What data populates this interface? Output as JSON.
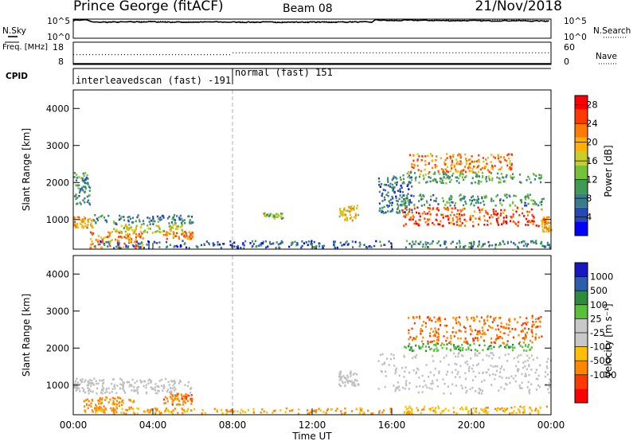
{
  "header": {
    "station": "Prince George (fitACF)",
    "beam": "Beam 08",
    "date": "21/Nov/2018"
  },
  "colors": {
    "power_scale": [
      "#0000ff",
      "#2848b8",
      "#3a7d8a",
      "#3f9a55",
      "#76c13a",
      "#c7cf28",
      "#ffb000",
      "#ff7a00",
      "#ff3a00",
      "#ff0000"
    ],
    "velocity_scale": [
      "#ff0000",
      "#ff3a00",
      "#ff8800",
      "#ffc000",
      "#c8c8c8",
      "#c8c8c8",
      "#58c13a",
      "#2f8a3f",
      "#2d5fa8",
      "#1818c0"
    ],
    "ground_scatter": "#c0c0c0",
    "dash_line": "#aaaaaa"
  },
  "chart_data": [
    {
      "type": "line",
      "name": "noise-panel",
      "left_label": "N.Sky",
      "right_label": "N.Search",
      "left_ticks": [
        "10^5",
        "10^0"
      ],
      "right_ticks": [
        "10^5",
        "10^0"
      ],
      "ylim": [
        0,
        5
      ],
      "series": [
        {
          "name": "N.Sky",
          "x_hours": [
            0,
            0.2,
            0.4,
            0.6,
            0.8,
            1.0,
            2,
            3,
            4,
            5,
            6,
            7,
            8,
            9,
            10,
            11,
            12,
            13,
            14,
            15,
            15.2,
            15.5,
            16,
            17,
            18,
            19,
            20,
            21,
            22,
            23,
            24
          ],
          "values": [
            4.6,
            4.8,
            4.7,
            4.9,
            4.5,
            4.2,
            4.2,
            4.25,
            4.3,
            4.2,
            4.2,
            4.25,
            4.2,
            4.2,
            4.2,
            4.2,
            4.2,
            4.2,
            4.25,
            4.2,
            4.8,
            4.7,
            4.6,
            4.7,
            4.65,
            4.6,
            4.6,
            4.55,
            4.6,
            4.5,
            4.5
          ]
        },
        {
          "name": "N.Search",
          "x_hours": [
            0,
            0.2,
            0.4,
            0.6,
            0.8,
            1.0,
            2,
            3,
            4,
            5,
            6,
            7,
            8,
            9,
            10,
            11,
            12,
            13,
            14,
            15,
            15.2,
            15.5,
            16,
            17,
            18,
            19,
            20,
            21,
            22,
            23,
            24
          ],
          "values": [
            4.9,
            5.0,
            4.8,
            4.9,
            4.7,
            4.3,
            4.3,
            4.35,
            4.4,
            4.3,
            4.3,
            4.3,
            4.3,
            4.3,
            4.3,
            4.3,
            4.3,
            4.3,
            4.3,
            4.3,
            5.0,
            4.9,
            4.8,
            4.9,
            4.8,
            4.8,
            4.7,
            4.7,
            4.8,
            4.7,
            4.6
          ]
        }
      ]
    },
    {
      "type": "line",
      "name": "freq-panel",
      "left_label": "Freq. [MHz]",
      "right_label": "Nave",
      "left_ticks": [
        "18",
        "8"
      ],
      "right_ticks": [
        "60",
        "0"
      ],
      "series": [
        {
          "name": "Freq.",
          "x_hours": [
            0,
            24
          ],
          "values": [
            10.5,
            10.5
          ]
        },
        {
          "name": "Nave",
          "x_hours": [
            0,
            8,
            8.01,
            24
          ],
          "values": [
            35,
            35,
            40,
            40
          ]
        }
      ]
    },
    {
      "type": "table",
      "name": "cpid-panel",
      "label": "CPID",
      "segments": [
        {
          "text": "interleavedscan (fast) -191",
          "start_hour": 0,
          "end_hour": 8
        },
        {
          "text": "normal (fast) 151",
          "start_hour": 8,
          "end_hour": 24
        }
      ]
    },
    {
      "type": "heatmap",
      "name": "power-panel",
      "ylabel": "Slant Range [km]",
      "xlim": [
        0,
        24
      ],
      "ylim": [
        200,
        4500
      ],
      "yticks": [
        "1000",
        "2000",
        "3000",
        "4000"
      ],
      "colorbar_label": "Power [dB]",
      "colorbar_ticks": [
        "4",
        "8",
        "12",
        "16",
        "20",
        "24",
        "28"
      ],
      "colorbar_range": [
        0,
        30
      ],
      "regions": [
        {
          "t0": 0.0,
          "t1": 0.8,
          "r0": 1400,
          "r1": 2300,
          "level": 10
        },
        {
          "t0": 0.0,
          "t1": 1.0,
          "r0": 800,
          "r1": 1100,
          "level": 20
        },
        {
          "t0": 0.8,
          "t1": 3.5,
          "r0": 250,
          "r1": 700,
          "level": 22
        },
        {
          "t0": 1.0,
          "t1": 6.0,
          "r0": 900,
          "r1": 1150,
          "level": 8
        },
        {
          "t0": 2.0,
          "t1": 5.5,
          "r0": 650,
          "r1": 900,
          "level": 16
        },
        {
          "t0": 4.5,
          "t1": 6.0,
          "r0": 500,
          "r1": 700,
          "level": 22
        },
        {
          "t0": 1.0,
          "t1": 16.0,
          "r0": 250,
          "r1": 450,
          "level": 6
        },
        {
          "t0": 9.5,
          "t1": 10.5,
          "r0": 1050,
          "r1": 1200,
          "level": 14
        },
        {
          "t0": 13.3,
          "t1": 14.3,
          "r0": 1000,
          "r1": 1400,
          "level": 18
        },
        {
          "t0": 15.3,
          "t1": 17.0,
          "r0": 1200,
          "r1": 2200,
          "level": 7
        },
        {
          "t0": 16.0,
          "t1": 23.6,
          "r0": 1400,
          "r1": 1700,
          "level": 10
        },
        {
          "t0": 16.5,
          "t1": 23.5,
          "r0": 850,
          "r1": 1350,
          "level": 25
        },
        {
          "t0": 16.8,
          "t1": 22.0,
          "r0": 2300,
          "r1": 2800,
          "level": 22
        },
        {
          "t0": 16.5,
          "t1": 23.5,
          "r0": 2000,
          "r1": 2300,
          "level": 11
        },
        {
          "t0": 16.5,
          "t1": 24,
          "r0": 250,
          "r1": 450,
          "level": 8
        },
        {
          "t0": 23.5,
          "t1": 24,
          "r0": 700,
          "r1": 1100,
          "level": 20
        }
      ]
    },
    {
      "type": "heatmap",
      "name": "velocity-panel",
      "ylabel": "Slant Range [km]",
      "xlabel": "Time UT",
      "xlim": [
        0,
        24
      ],
      "ylim": [
        200,
        4500
      ],
      "yticks": [
        "1000",
        "2000",
        "3000",
        "4000"
      ],
      "xticks": [
        "00:00",
        "04:00",
        "08:00",
        "12:00",
        "16:00",
        "20:00",
        "00:00"
      ],
      "colorbar_label": "Velocity [m s⁻¹]",
      "colorbar_ticks": [
        "1000",
        "500",
        "100",
        "25",
        "-25",
        "-100",
        "-500",
        "-1000"
      ],
      "regions": [
        {
          "t0": 0.0,
          "t1": 1.0,
          "r0": 800,
          "r1": 1200,
          "v": 0
        },
        {
          "t0": 0.5,
          "t1": 3.0,
          "r0": 250,
          "r1": 700,
          "v": -150
        },
        {
          "t0": 1.0,
          "t1": 6.0,
          "r0": 800,
          "r1": 1200,
          "v": 0
        },
        {
          "t0": 4.5,
          "t1": 6.0,
          "r0": 500,
          "r1": 800,
          "v": -400
        },
        {
          "t0": 1.0,
          "t1": 16.0,
          "r0": 250,
          "r1": 400,
          "v": -100
        },
        {
          "t0": 13.3,
          "t1": 14.3,
          "r0": 1000,
          "r1": 1400,
          "v": 0
        },
        {
          "t0": 15.3,
          "t1": 24.0,
          "r0": 800,
          "r1": 1900,
          "v": 0
        },
        {
          "t0": 16.5,
          "t1": 24.0,
          "r0": 250,
          "r1": 450,
          "v": -80
        },
        {
          "t0": 16.8,
          "t1": 23.5,
          "r0": 2150,
          "r1": 2900,
          "v": -450
        },
        {
          "t0": 16.5,
          "t1": 23.0,
          "r0": 1950,
          "r1": 2150,
          "v": 80
        }
      ]
    }
  ]
}
